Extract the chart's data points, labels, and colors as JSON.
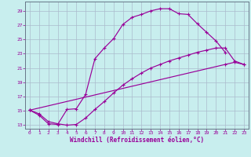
{
  "bg_color": "#c8eeee",
  "line_color": "#990099",
  "grid_color": "#aabbcc",
  "xlabel": "Windchill (Refroidissement éolien,°C)",
  "xlim": [
    -0.5,
    23.5
  ],
  "ylim": [
    12.5,
    30.3
  ],
  "xticks": [
    0,
    1,
    2,
    3,
    4,
    5,
    6,
    7,
    8,
    9,
    10,
    11,
    12,
    13,
    14,
    15,
    16,
    17,
    18,
    19,
    20,
    21,
    22,
    23
  ],
  "yticks": [
    13,
    15,
    17,
    19,
    21,
    23,
    25,
    27,
    29
  ],
  "curve1_x": [
    0,
    1,
    2,
    3,
    4,
    5,
    6,
    7,
    8,
    9,
    10,
    11,
    12,
    13,
    14,
    15,
    16,
    17,
    18,
    19,
    20,
    21
  ],
  "curve1_y": [
    15.1,
    14.4,
    13.2,
    13.1,
    15.2,
    15.3,
    17.3,
    22.3,
    23.8,
    25.1,
    27.1,
    28.1,
    28.5,
    29.0,
    29.3,
    29.3,
    28.6,
    28.5,
    27.2,
    26.0,
    24.8,
    23.2
  ],
  "curve2_x": [
    0,
    1,
    2,
    3,
    4,
    5,
    6,
    7,
    8,
    9,
    10,
    11,
    12,
    13,
    14,
    15,
    16,
    17,
    18,
    19,
    20,
    21,
    22,
    23
  ],
  "curve2_y": [
    15.1,
    14.6,
    13.5,
    13.2,
    13.0,
    13.1,
    14.0,
    15.2,
    16.3,
    17.5,
    18.6,
    19.5,
    20.3,
    21.0,
    21.5,
    22.0,
    22.4,
    22.8,
    23.2,
    23.5,
    23.8,
    23.8,
    22.0,
    21.5
  ],
  "curve3_x": [
    0,
    21,
    22,
    23
  ],
  "curve3_y": [
    15.1,
    21.5,
    21.8,
    21.5
  ],
  "ms": 2.5,
  "lw": 0.85
}
